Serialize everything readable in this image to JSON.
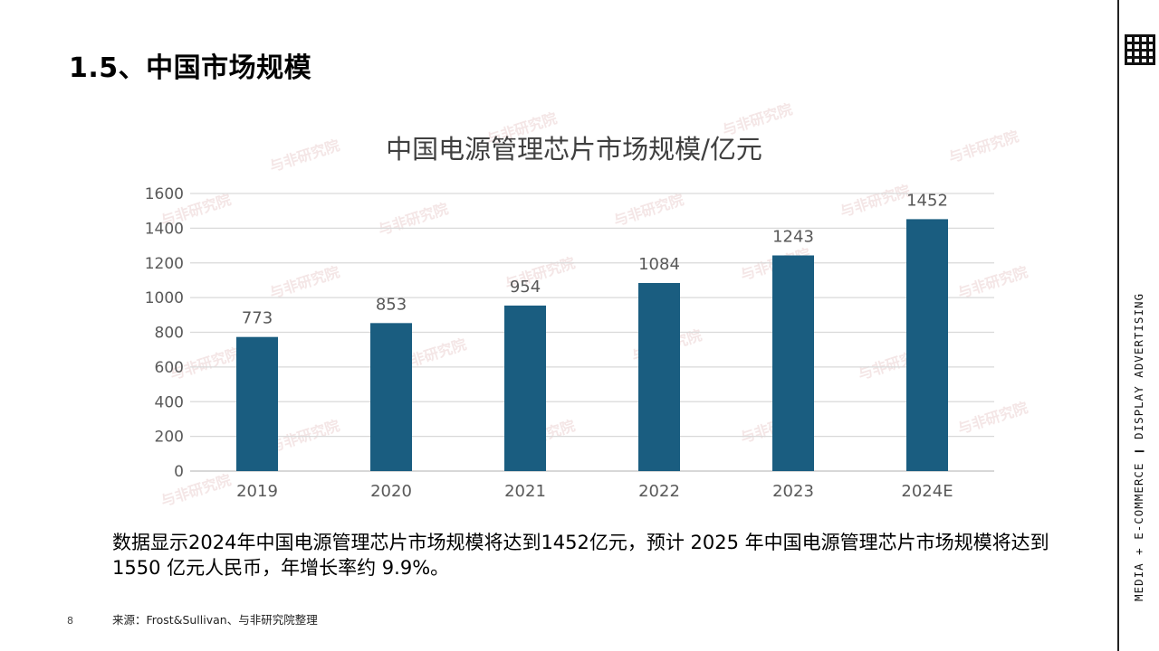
{
  "slide": {
    "title": "1.5、中国市场规模",
    "page_number": "8",
    "side_tag": "MEDIA + E-COMMERCE ❙ DISPLAY ADVERTISING",
    "summary": "数据显示2024年中国电源管理芯片市场规模将达到1452亿元，预计 2025 年中国电源管理芯片市场规模将达到1550 亿元人民币，年增长率约 9.9%。",
    "source": "来源：Frost&Sullivan、与非研究院整理",
    "watermark_text": "与非研究院"
  },
  "chart_data": {
    "type": "bar",
    "title": "中国电源管理芯片市场规模/亿元",
    "categories": [
      "2019",
      "2020",
      "2021",
      "2022",
      "2023",
      "2024E"
    ],
    "values": [
      773,
      853,
      954,
      1084,
      1243,
      1452
    ],
    "data_labels": [
      "773",
      "853",
      "954",
      "1084",
      "1243",
      "1452"
    ],
    "ylim": [
      0,
      1600
    ],
    "yticks": [
      0,
      200,
      400,
      600,
      800,
      1000,
      1200,
      1400,
      1600
    ],
    "grid": true,
    "legend": "none",
    "colors": {
      "bar": "#1a5d80",
      "grid": "#d9d9d9",
      "tick_text": "#595959",
      "title_text": "#404040"
    }
  }
}
